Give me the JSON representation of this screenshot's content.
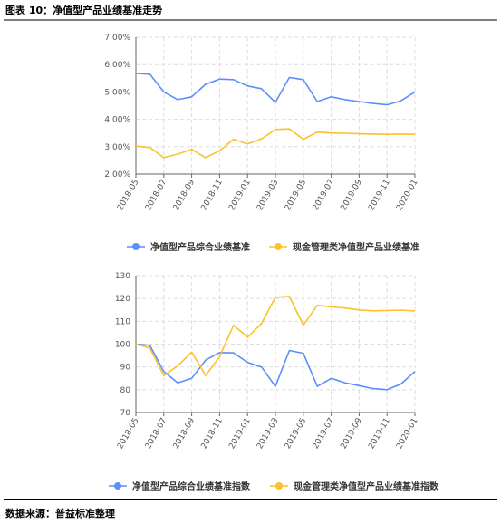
{
  "figure": {
    "title": "图表 10：净值型产品业绩基准走势",
    "source": "数据来源：普益标准整理"
  },
  "colors": {
    "blue": "#5B8FF9",
    "yellow": "#FAC22B",
    "grid": "#dddddd",
    "axis": "#666666"
  },
  "chart_data": [
    {
      "type": "line",
      "categories": [
        "2018-05",
        "2018-06",
        "2018-07",
        "2018-08",
        "2018-09",
        "2018-10",
        "2018-11",
        "2018-12",
        "2019-01",
        "2019-02",
        "2019-03",
        "2019-04",
        "2019-05",
        "2019-06",
        "2019-07",
        "2019-08",
        "2019-09",
        "2019-10",
        "2019-11",
        "2019-12",
        "2020-01"
      ],
      "tick_labels": [
        "2018-05",
        "2018-07",
        "2018-09",
        "2018-11",
        "2019-01",
        "2019-03",
        "2019-05",
        "2019-07",
        "2019-09",
        "2019-11",
        "2020-01"
      ],
      "y_ticks": [
        "7.00%",
        "6.00%",
        "5.00%",
        "4.00%",
        "3.00%",
        "2.00%"
      ],
      "ylim": [
        2,
        7
      ],
      "grid": true,
      "legend_position": "bottom",
      "series": [
        {
          "name": "净值型产品综合业绩基准",
          "color": "#5B8FF9",
          "values": [
            5.68,
            5.65,
            5.0,
            4.72,
            4.82,
            5.28,
            5.47,
            5.45,
            5.22,
            5.12,
            4.62,
            5.53,
            5.45,
            4.65,
            4.82,
            4.72,
            4.65,
            4.58,
            4.53,
            4.68,
            5.0
          ]
        },
        {
          "name": "现金管理类净值型产品业绩基准",
          "color": "#FAC22B",
          "values": [
            3.02,
            2.97,
            2.6,
            2.73,
            2.9,
            2.6,
            2.85,
            3.27,
            3.1,
            3.28,
            3.63,
            3.65,
            3.27,
            3.53,
            3.5,
            3.49,
            3.47,
            3.46,
            3.45,
            3.46,
            3.45
          ]
        }
      ]
    },
    {
      "type": "line",
      "categories": [
        "2018-05",
        "2018-06",
        "2018-07",
        "2018-08",
        "2018-09",
        "2018-10",
        "2018-11",
        "2018-12",
        "2019-01",
        "2019-02",
        "2019-03",
        "2019-04",
        "2019-05",
        "2019-06",
        "2019-07",
        "2019-08",
        "2019-09",
        "2019-10",
        "2019-11",
        "2019-12",
        "2020-01"
      ],
      "tick_labels": [
        "2018-05",
        "2018-07",
        "2018-09",
        "2018-11",
        "2019-01",
        "2019-03",
        "2019-05",
        "2019-07",
        "2019-09",
        "2019-11",
        "2020-01"
      ],
      "y_ticks": [
        "130",
        "120",
        "110",
        "100",
        "90",
        "80",
        "70"
      ],
      "ylim": [
        70,
        130
      ],
      "grid": true,
      "legend_position": "bottom",
      "series": [
        {
          "name": "净值型产品综合业绩基准指数",
          "color": "#5B8FF9",
          "values": [
            100,
            99.5,
            88,
            83,
            85,
            93,
            96.3,
            96.2,
            92,
            90,
            81.5,
            97.2,
            96,
            81.5,
            85,
            83,
            81.8,
            80.5,
            80,
            82.5,
            88
          ]
        },
        {
          "name": "现金管理类净值型产品业绩基准指数",
          "color": "#FAC22B",
          "values": [
            100,
            98.3,
            86.2,
            90.5,
            96.5,
            86.2,
            94.5,
            108.3,
            103,
            109,
            120.5,
            120.9,
            108.3,
            117,
            116.3,
            115.8,
            115,
            114.6,
            114.7,
            114.9,
            114.5
          ]
        }
      ]
    }
  ]
}
